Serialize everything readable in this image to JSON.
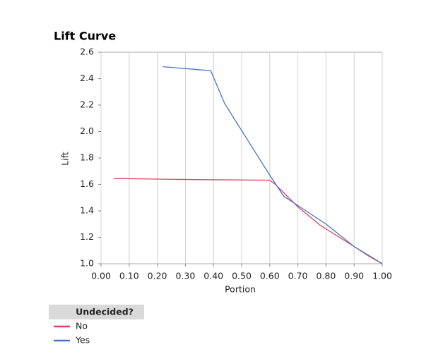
{
  "chart_data": {
    "type": "line",
    "title": "Lift Curve",
    "x_label": "Portion",
    "y_label": "Lift",
    "xlim": [
      0,
      1
    ],
    "ylim": [
      1,
      2.6
    ],
    "xticks": [
      {
        "value": 0,
        "label": "0.00"
      },
      {
        "value": 0.1,
        "label": "0.10"
      },
      {
        "value": 0.2,
        "label": "0.20"
      },
      {
        "value": 0.3,
        "label": "0.30"
      },
      {
        "value": 0.4,
        "label": "0.40"
      },
      {
        "value": 0.5,
        "label": "0.50"
      },
      {
        "value": 0.6,
        "label": "0.60"
      },
      {
        "value": 0.7,
        "label": "0.70"
      },
      {
        "value": 0.8,
        "label": "0.80"
      },
      {
        "value": 0.9,
        "label": "0.90"
      },
      {
        "value": 1,
        "label": "1.00"
      }
    ],
    "yticks": [
      {
        "value": 1,
        "label": "1.0"
      },
      1.2,
      1.4,
      1.6,
      1.8,
      {
        "value": 2,
        "label": "2.0"
      },
      2.2,
      2.4,
      2.6
    ],
    "grid": "vertical",
    "legend_title": "Undecided?",
    "series": [
      {
        "name": "No",
        "color": "#d6455e",
        "x": [
          0.045,
          0.2,
          0.4,
          0.6,
          0.62,
          0.7,
          0.78,
          0.9,
          0.95,
          1.0
        ],
        "values": [
          1.645,
          1.64,
          1.635,
          1.632,
          1.6,
          1.43,
          1.29,
          1.13,
          1.06,
          1.0
        ]
      },
      {
        "name": "Yes",
        "color": "#4a72c8",
        "x": [
          0.22,
          0.39,
          0.44,
          0.6,
          0.65,
          0.7,
          0.8,
          0.9,
          0.97,
          1.0
        ],
        "values": [
          2.49,
          2.46,
          2.21,
          1.67,
          1.51,
          1.44,
          1.3,
          1.13,
          1.04,
          1.0
        ]
      }
    ]
  }
}
